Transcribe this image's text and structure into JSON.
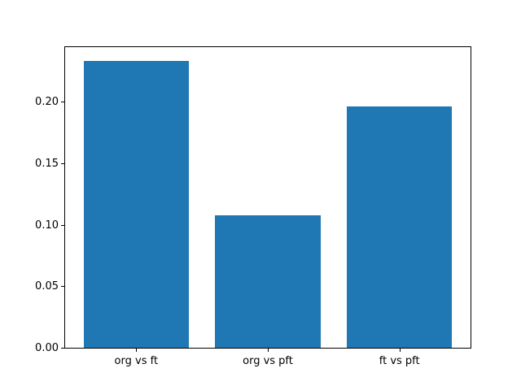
{
  "chart_data": {
    "type": "bar",
    "categories": [
      "org vs ft",
      "org vs pft",
      "ft vs pft"
    ],
    "values": [
      0.233,
      0.108,
      0.196
    ],
    "title": "",
    "xlabel": "",
    "ylabel": "",
    "ylim": [
      0,
      0.2445
    ],
    "yticks": [
      0.0,
      0.05,
      0.1,
      0.15,
      0.2
    ],
    "ytick_labels": [
      "0.00",
      "0.05",
      "0.10",
      "0.15",
      "0.20"
    ],
    "grid": false,
    "legend": null,
    "bar_color": "#1f77b4",
    "bar_width_fraction": 0.8,
    "x_edge_padding": 0.54
  },
  "colors": {
    "background": "#ffffff",
    "spine": "#000000",
    "tick_text": "#000000",
    "bar": "#1f77b4"
  }
}
